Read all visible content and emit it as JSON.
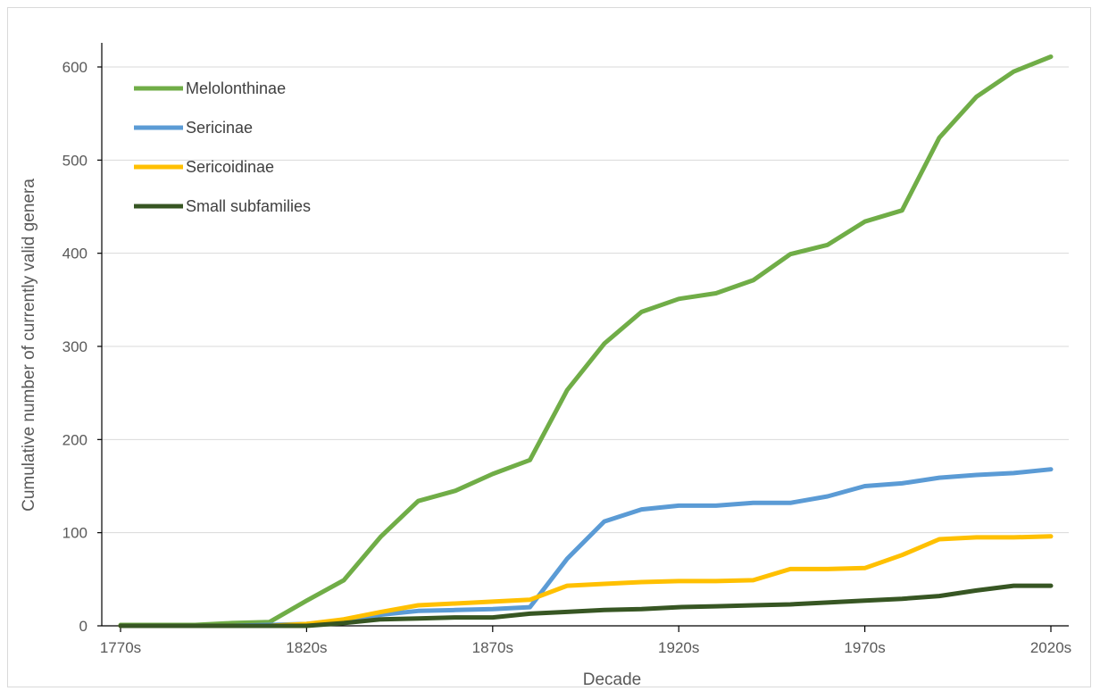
{
  "chart_data": {
    "type": "line",
    "title": "",
    "xlabel": "Decade",
    "ylabel": "Cumulative number of currently valid genera",
    "x": [
      "1770s",
      "1780s",
      "1790s",
      "1800s",
      "1810s",
      "1820s",
      "1830s",
      "1840s",
      "1850s",
      "1860s",
      "1870s",
      "1880s",
      "1890s",
      "1900s",
      "1910s",
      "1920s",
      "1930s",
      "1940s",
      "1950s",
      "1960s",
      "1970s",
      "1980s",
      "1990s",
      "2000s",
      "2010s",
      "2020s"
    ],
    "x_tick_labels": [
      "1770s",
      "1820s",
      "1870s",
      "1920s",
      "1970s",
      "2020s"
    ],
    "ylim": [
      0,
      600
    ],
    "y_ticks": [
      "0",
      "100",
      "200",
      "300",
      "400",
      "500",
      "600"
    ],
    "grid": "horizontal",
    "legend_position": "top-left",
    "series": [
      {
        "name": "Melolonthinae",
        "color": "#70ad47",
        "values": [
          1,
          1,
          1,
          3,
          4,
          27,
          49,
          96,
          134,
          145,
          163,
          178,
          253,
          303,
          337,
          351,
          357,
          371,
          399,
          409,
          434,
          446,
          524,
          568,
          595,
          611
        ]
      },
      {
        "name": "Sericinae",
        "color": "#5b9bd5",
        "values": [
          0,
          0,
          0,
          0,
          1,
          2,
          5,
          12,
          16,
          17,
          18,
          20,
          72,
          112,
          125,
          129,
          129,
          132,
          132,
          139,
          150,
          153,
          159,
          162,
          164,
          168
        ]
      },
      {
        "name": "Sericoidinae",
        "color": "#ffc000",
        "values": [
          0,
          0,
          0,
          0,
          0,
          2,
          7,
          15,
          22,
          24,
          26,
          28,
          43,
          45,
          47,
          48,
          48,
          49,
          61,
          61,
          62,
          76,
          93,
          95,
          95,
          96
        ]
      },
      {
        "name": "Small subfamilies",
        "color": "#375623",
        "values": [
          0,
          0,
          0,
          0,
          0,
          0,
          3,
          7,
          8,
          9,
          9,
          13,
          15,
          17,
          18,
          20,
          21,
          22,
          23,
          25,
          27,
          29,
          32,
          38,
          43,
          43
        ]
      }
    ]
  }
}
